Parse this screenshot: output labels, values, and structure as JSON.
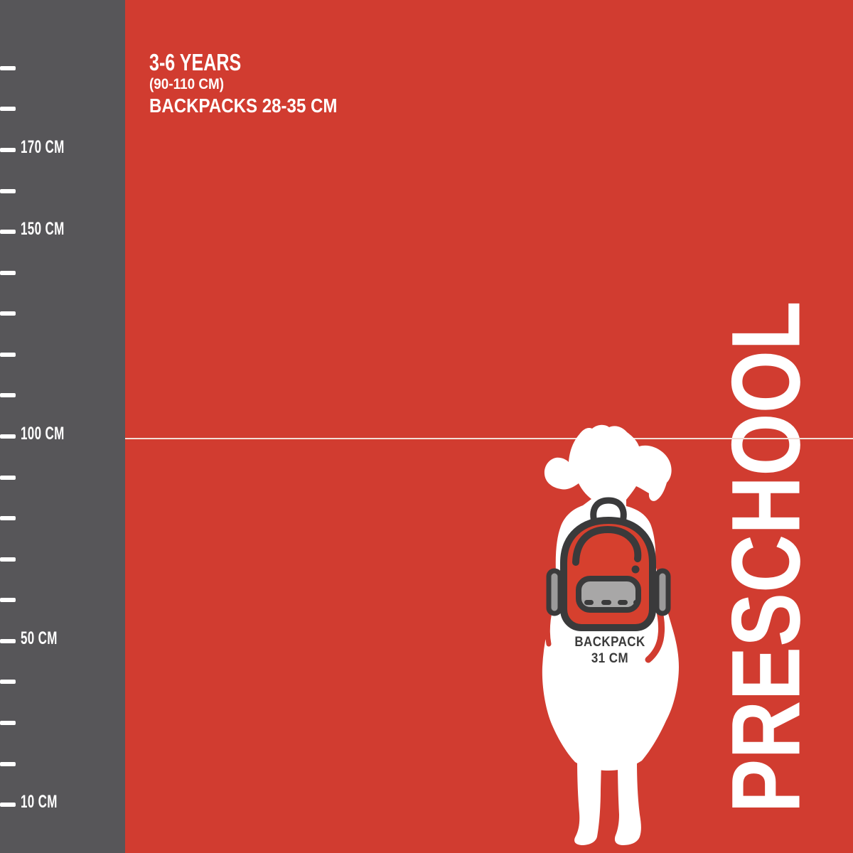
{
  "poster": {
    "header": {
      "age_range": "3-6 YEARS",
      "height_range": "(90-110 CM)",
      "backpack_size_range": "BACKPACKS 28-35 CM"
    },
    "category": "PRESCHOOL",
    "figure_label": {
      "line1": "BACKPACK",
      "line2": "31 CM"
    },
    "ruler": {
      "unit": "CM",
      "tick_values": [
        190,
        180,
        170,
        160,
        150,
        140,
        130,
        120,
        110,
        100,
        90,
        80,
        70,
        60,
        50,
        40,
        30,
        20,
        10
      ],
      "labels": [
        {
          "value": 170,
          "text": "170 CM"
        },
        {
          "value": 150,
          "text": "150 CM"
        },
        {
          "value": 100,
          "text": "100 CM"
        },
        {
          "value": 50,
          "text": "50 CM"
        },
        {
          "value": 10,
          "text": "10 CM"
        }
      ],
      "reference_line_value": 100
    },
    "colors": {
      "background": "#d13c30",
      "ruler_bar": "#575659",
      "text_light": "#ffffff",
      "backpack_red": "#d6402e",
      "outline_dark": "#3a3a3b",
      "pocket_gray": "#a8a7a7",
      "side_pocket_gray": "#9b9a9a",
      "figure_label_dark": "#3b3b3b",
      "reference_line": "#f3ded7"
    }
  }
}
